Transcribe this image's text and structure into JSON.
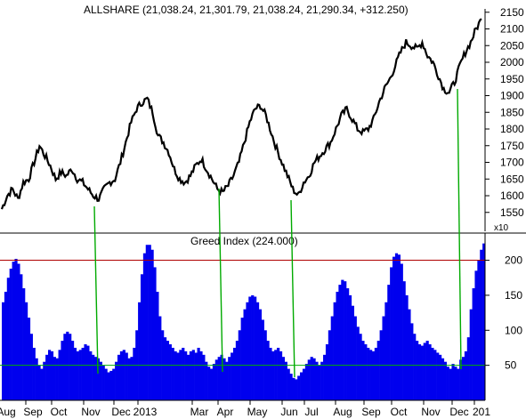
{
  "chart_data": [
    {
      "type": "line",
      "title": "ALLSHARE (21,038.24, 21,301.79, 21,038.24, 21,290.34, +312.250)",
      "xlabel": "",
      "ylabel": "",
      "ylim": [
        1520,
        2160
      ],
      "yticks": [
        "1550",
        "1600",
        "1650",
        "1700",
        "1750",
        "1800",
        "1850",
        "1900",
        "1950",
        "2000",
        "2050",
        "2100",
        "2150"
      ],
      "scale_note": "x10",
      "series": [
        {
          "values": [
            1560,
            1600,
            1620,
            1590,
            1640,
            1650,
            1700,
            1750,
            1720,
            1690,
            1650,
            1670,
            1660,
            1680,
            1650,
            1640,
            1620,
            1600,
            1590,
            1620,
            1640,
            1650,
            1700,
            1760,
            1820,
            1860,
            1880,
            1890,
            1850,
            1780,
            1760,
            1730,
            1680,
            1650,
            1640,
            1660,
            1690,
            1710,
            1680,
            1650,
            1620,
            1610,
            1630,
            1660,
            1700,
            1760,
            1820,
            1860,
            1870,
            1840,
            1790,
            1740,
            1700,
            1660,
            1620,
            1600,
            1640,
            1660,
            1700,
            1720,
            1740,
            1760,
            1800,
            1840,
            1860,
            1830,
            1800,
            1790,
            1800,
            1830,
            1880,
            1920,
            1950,
            1990,
            2030,
            2060,
            2050,
            2040,
            2060,
            2020,
            2000,
            1960,
            1920,
            1910,
            1940,
            1990,
            2030,
            2060,
            2100,
            2130
          ]
        }
      ]
    },
    {
      "type": "bar",
      "title": "Greed Index (224.000)",
      "xlabel": "",
      "ylabel": "",
      "ylim": [
        0,
        235
      ],
      "yticks": [
        "50",
        "100",
        "150",
        "200"
      ],
      "reference_lines": [
        200,
        50
      ],
      "series": [
        {
          "name": "Greed Index",
          "values": [
            140,
            155,
            175,
            188,
            198,
            202,
            195,
            180,
            160,
            140,
            118,
            95,
            75,
            60,
            50,
            45,
            55,
            65,
            72,
            70,
            62,
            60,
            72,
            85,
            95,
            98,
            95,
            85,
            75,
            70,
            72,
            75,
            80,
            78,
            70,
            65,
            62,
            60,
            55,
            50,
            45,
            40,
            42,
            45,
            55,
            65,
            70,
            72,
            68,
            60,
            62,
            75,
            100,
            140,
            180,
            210,
            222,
            222,
            215,
            190,
            155,
            120,
            100,
            90,
            85,
            80,
            75,
            70,
            68,
            72,
            75,
            70,
            65,
            70,
            72,
            68,
            75,
            70,
            65,
            55,
            48,
            45,
            52,
            58,
            62,
            65,
            60,
            55,
            62,
            68,
            75,
            85,
            100,
            118,
            130,
            140,
            148,
            150,
            148,
            140,
            130,
            115,
            100,
            85,
            75,
            70,
            72,
            75,
            70,
            62,
            55,
            45,
            38,
            32,
            30,
            35,
            40,
            45,
            52,
            58,
            62,
            60,
            55,
            50,
            55,
            65,
            80,
            100,
            120,
            140,
            155,
            165,
            172,
            170,
            160,
            150,
            135,
            120,
            105,
            95,
            85,
            80,
            75,
            72,
            70,
            75,
            85,
            100,
            120,
            140,
            165,
            190,
            205,
            210,
            208,
            195,
            170,
            150,
            130,
            110,
            95,
            85,
            80,
            78,
            82,
            85,
            80,
            75,
            72,
            68,
            65,
            60,
            55,
            48,
            45,
            52,
            48,
            45,
            58,
            62,
            70,
            90,
            130,
            160,
            185,
            200,
            215,
            224
          ]
        }
      ],
      "x_labels": [
        "Aug",
        "Sep",
        "Oct",
        "Nov",
        "Dec",
        "2013",
        "Mar",
        "Apr",
        "May",
        "Jun",
        "Jul",
        "Aug",
        "Sep",
        "Oct",
        "Nov",
        "Dec",
        "201"
      ]
    }
  ]
}
